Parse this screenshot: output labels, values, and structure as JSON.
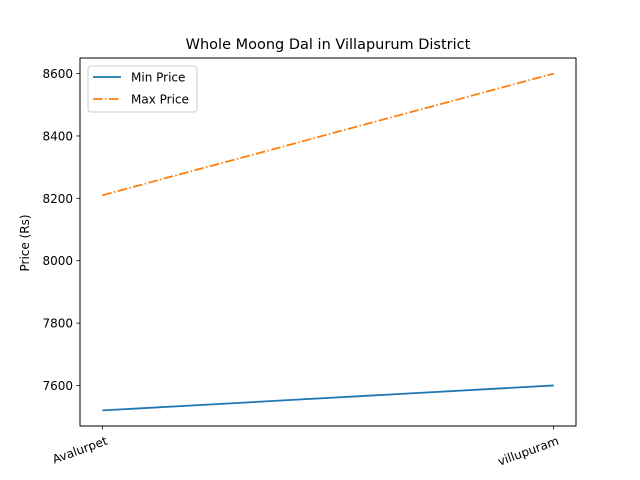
{
  "chart_data": {
    "type": "line",
    "title": "Whole Moong Dal in Villapurum District",
    "xlabel": "",
    "ylabel": "Price (Rs)",
    "categories": [
      "Avalurpet",
      "villupuram"
    ],
    "series": [
      {
        "name": "Min Price",
        "values": [
          7520,
          7600
        ],
        "color": "#1f77b4",
        "style": "solid"
      },
      {
        "name": "Max Price",
        "values": [
          8210,
          8600
        ],
        "color": "#ff7f0e",
        "style": "dashdot"
      }
    ],
    "ylim": [
      7470,
      8650
    ],
    "yticks": [
      7600,
      7800,
      8000,
      8200,
      8400,
      8600
    ],
    "ytick_labels": [
      "7600",
      "7800",
      "8000",
      "8200",
      "8400",
      "8600"
    ],
    "legend": {
      "position": "top-left",
      "entries": [
        "Min Price",
        "Max Price"
      ]
    },
    "grid": false
  }
}
